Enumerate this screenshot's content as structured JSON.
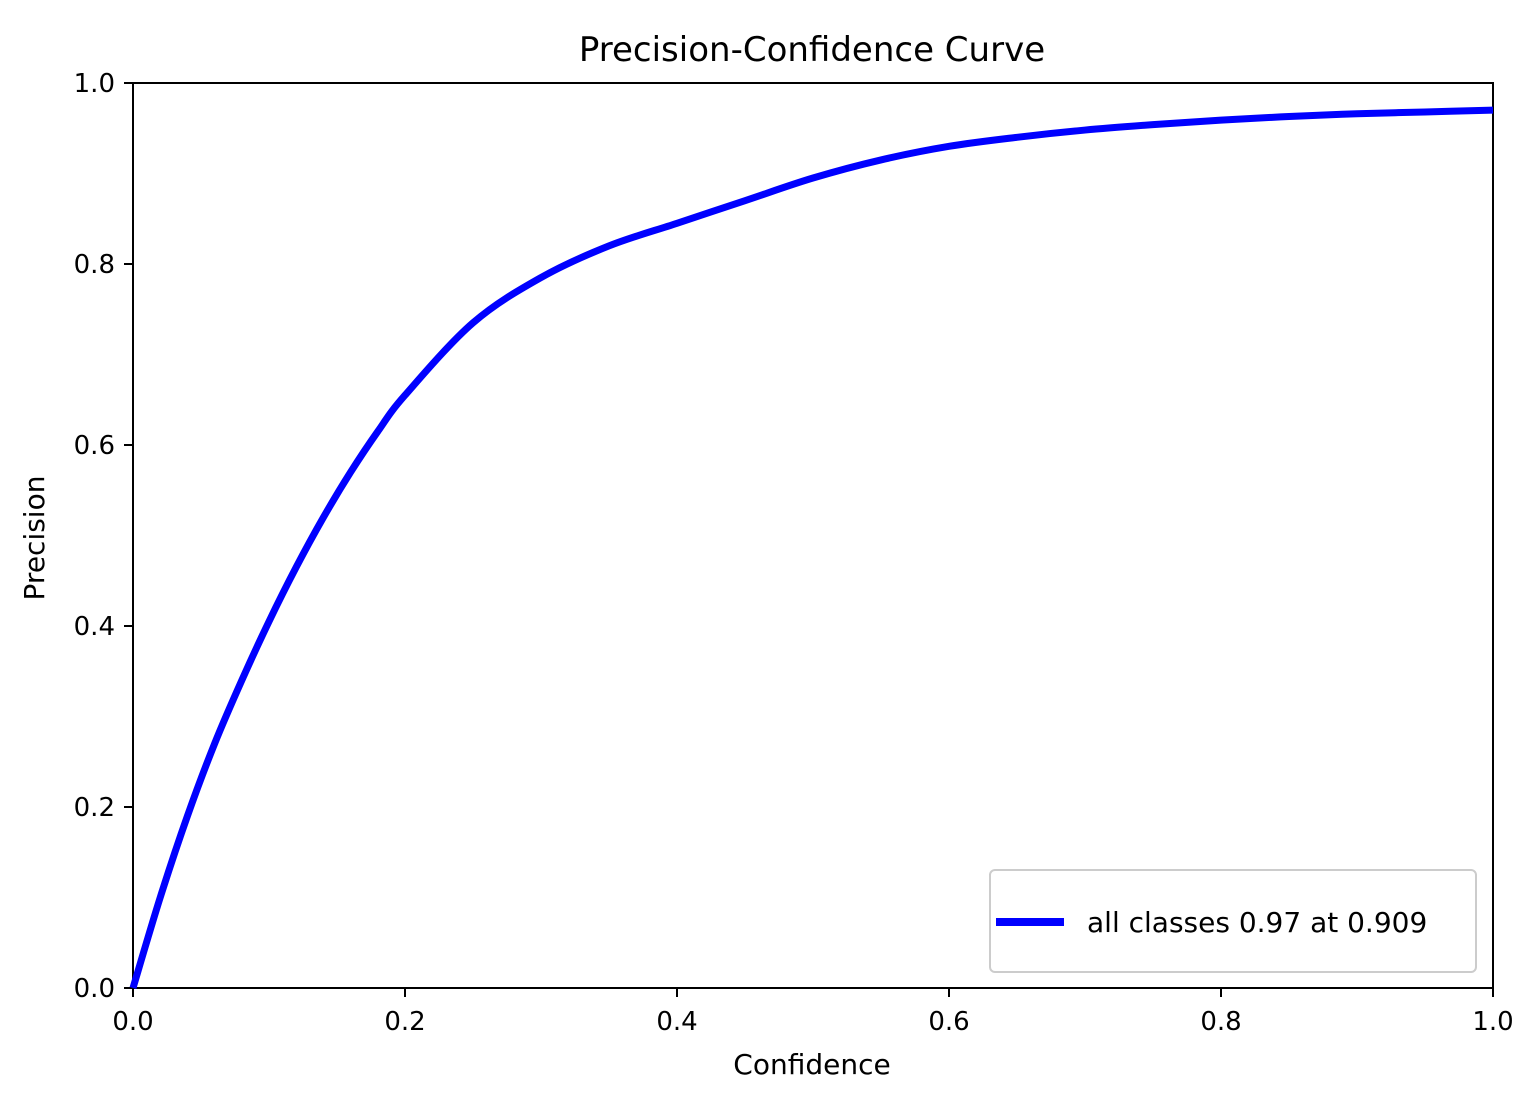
{
  "chart_data": {
    "type": "line",
    "title": "Precision-Confidence Curve",
    "xlabel": "Confidence",
    "ylabel": "Precision",
    "xlim": [
      0,
      1
    ],
    "ylim": [
      0,
      1
    ],
    "x_ticks": [
      "0.0",
      "0.2",
      "0.4",
      "0.6",
      "0.8",
      "1.0"
    ],
    "y_ticks": [
      "0.0",
      "0.2",
      "0.4",
      "0.6",
      "0.8",
      "1.0"
    ],
    "grid": false,
    "legend_position": "bottom-right",
    "series": [
      {
        "name": "all classes 0.97 at 0.909",
        "color": "#0000ff",
        "x": [
          0.0,
          0.02,
          0.04,
          0.06,
          0.08,
          0.1,
          0.12,
          0.14,
          0.16,
          0.18,
          0.2,
          0.25,
          0.3,
          0.35,
          0.4,
          0.45,
          0.5,
          0.55,
          0.6,
          0.65,
          0.7,
          0.75,
          0.8,
          0.85,
          0.9,
          0.95,
          1.0
        ],
        "y": [
          0.0,
          0.1,
          0.19,
          0.27,
          0.34,
          0.405,
          0.465,
          0.52,
          0.57,
          0.615,
          0.655,
          0.735,
          0.785,
          0.82,
          0.845,
          0.87,
          0.895,
          0.915,
          0.93,
          0.94,
          0.948,
          0.954,
          0.959,
          0.963,
          0.966,
          0.968,
          0.97
        ]
      }
    ]
  }
}
